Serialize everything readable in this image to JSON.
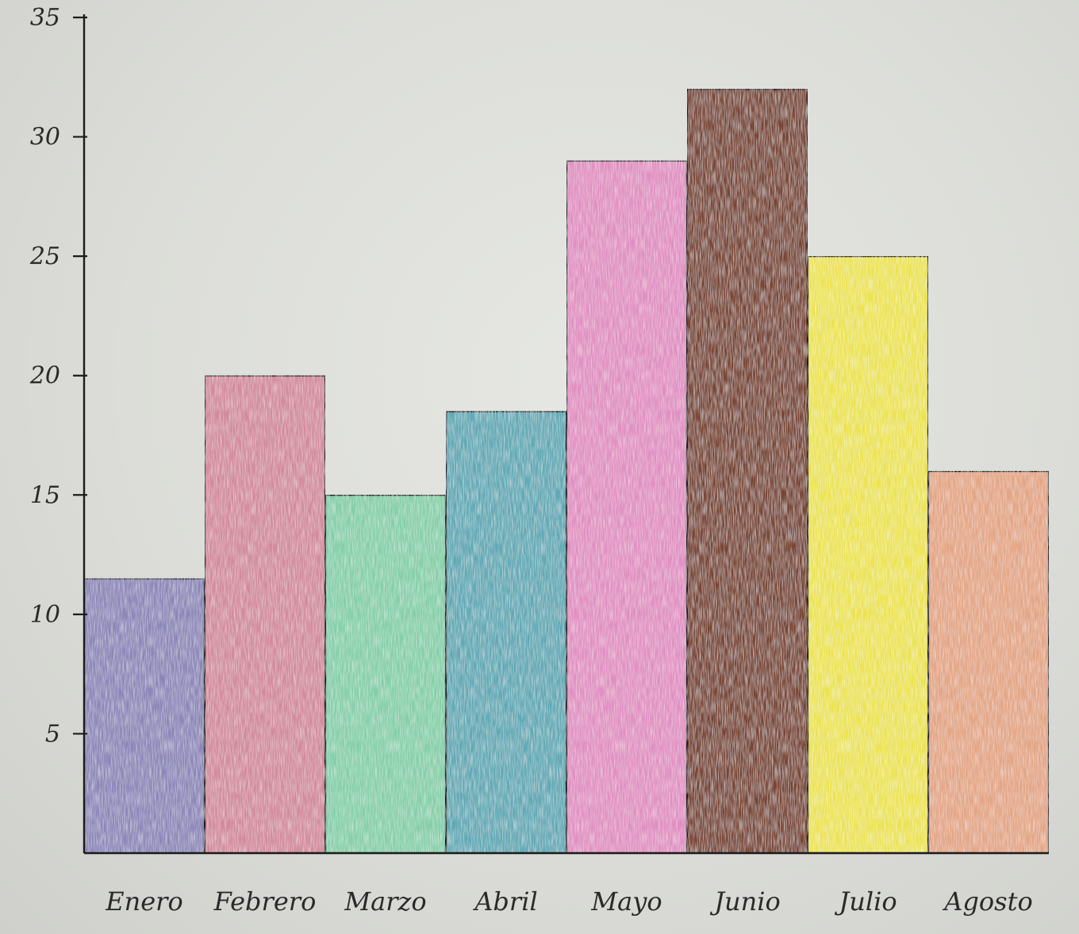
{
  "chart_data": {
    "type": "bar",
    "categories": [
      "Enero",
      "Febrero",
      "Marzo",
      "Abril",
      "Mayo",
      "Junio",
      "Julio",
      "Agosto"
    ],
    "values": [
      11.5,
      20,
      15,
      18.5,
      29,
      32,
      25,
      16
    ],
    "colors": [
      "#8b86b8",
      "#d28a9c",
      "#84cfa9",
      "#5ea9b5",
      "#e08fc1",
      "#7a4432",
      "#ece34e",
      "#e3a584"
    ],
    "ylim": [
      0,
      35
    ],
    "yticks": [
      "5",
      "10",
      "15",
      "20",
      "25",
      "30",
      "35"
    ],
    "title": "",
    "xlabel": "",
    "ylabel": "",
    "grid": false,
    "legend": "none"
  }
}
